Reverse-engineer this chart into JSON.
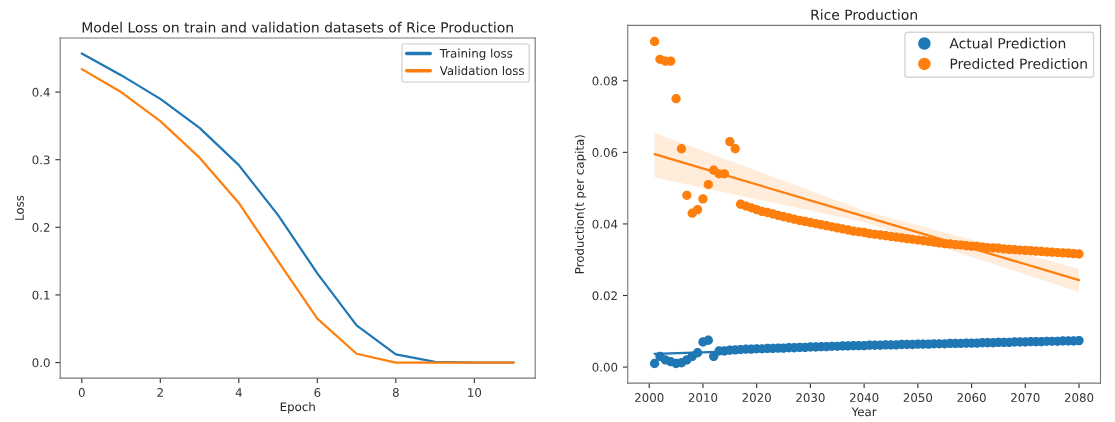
{
  "chart_data": [
    {
      "type": "line",
      "title": "Model Loss on train and validation datasets of Rice Production",
      "xlabel": "Epoch",
      "ylabel": "Loss",
      "x": [
        0,
        1,
        2,
        3,
        4,
        5,
        6,
        7,
        8,
        9,
        10,
        11
      ],
      "series": [
        {
          "name": "Training loss",
          "color": "#1f77b4",
          "values": [
            0.457,
            0.425,
            0.39,
            0.347,
            0.292,
            0.218,
            0.132,
            0.055,
            0.012,
            0.001,
            0.0,
            0.0
          ]
        },
        {
          "name": "Validation loss",
          "color": "#ff7f0e",
          "values": [
            0.434,
            0.4,
            0.357,
            0.303,
            0.236,
            0.15,
            0.065,
            0.013,
            0.0,
            0.0,
            0.0,
            0.0
          ]
        }
      ],
      "xlim": [
        -0.55,
        11.55
      ],
      "ylim": [
        -0.023,
        0.48
      ],
      "xticks": [
        0,
        2,
        4,
        6,
        8,
        10
      ],
      "yticks": [
        {
          "value": 0,
          "label": "0.0"
        },
        0.1,
        0.2,
        0.3,
        0.4
      ],
      "legend": "top right",
      "grid": false,
      "marker": "none",
      "line_style": "solid"
    },
    {
      "type": "scatter",
      "title": "Rice Production",
      "xlabel": "Year",
      "ylabel": "Production(t per capita)",
      "x": [
        2001,
        2002,
        2003,
        2004,
        2005,
        2006,
        2007,
        2008,
        2009,
        2010,
        2011,
        2012,
        2013,
        2014,
        2015,
        2016,
        2017,
        2018,
        2019,
        2020,
        2021,
        2022,
        2023,
        2024,
        2025,
        2026,
        2027,
        2028,
        2029,
        2030,
        2031,
        2032,
        2033,
        2034,
        2035,
        2036,
        2037,
        2038,
        2039,
        2040,
        2041,
        2042,
        2043,
        2044,
        2045,
        2046,
        2047,
        2048,
        2049,
        2050,
        2051,
        2052,
        2053,
        2054,
        2055,
        2056,
        2057,
        2058,
        2059,
        2060,
        2061,
        2062,
        2063,
        2064,
        2065,
        2066,
        2067,
        2068,
        2069,
        2070,
        2071,
        2072,
        2073,
        2074,
        2075,
        2076,
        2077,
        2078,
        2079,
        2080
      ],
      "series": [
        {
          "name": "Actual Prediction",
          "color": "#1f77b4",
          "values": [
            0.001,
            0.003,
            0.002,
            0.0015,
            0.001,
            0.0012,
            0.002,
            0.003,
            0.004,
            0.007,
            0.0075,
            0.003,
            0.0045,
            0.0045,
            0.0047,
            0.0048,
            0.0049,
            0.005,
            0.005,
            0.0051,
            0.0051,
            0.0052,
            0.0052,
            0.0053,
            0.0053,
            0.0054,
            0.0054,
            0.0055,
            0.0055,
            0.0056,
            0.0056,
            0.0057,
            0.0057,
            0.0058,
            0.0058,
            0.0059,
            0.0059,
            0.006,
            0.006,
            0.006,
            0.0061,
            0.0061,
            0.0061,
            0.0062,
            0.0062,
            0.0062,
            0.0063,
            0.0063,
            0.0063,
            0.0064,
            0.0064,
            0.0064,
            0.0065,
            0.0065,
            0.0065,
            0.0066,
            0.0066,
            0.0066,
            0.0067,
            0.0067,
            0.0067,
            0.0068,
            0.0068,
            0.0068,
            0.0069,
            0.0069,
            0.0069,
            0.007,
            0.007,
            0.007,
            0.0071,
            0.0071,
            0.0071,
            0.0072,
            0.0072,
            0.0072,
            0.0073,
            0.0073,
            0.0073,
            0.0074
          ]
        },
        {
          "name": "Predicted Prediction",
          "color": "#ff7f0e",
          "values": [
            0.091,
            0.086,
            0.0855,
            0.0855,
            0.075,
            0.061,
            0.048,
            0.043,
            0.044,
            0.047,
            0.051,
            0.055,
            0.054,
            0.054,
            0.063,
            0.061,
            0.0455,
            0.045,
            0.0445,
            0.044,
            0.0435,
            0.0432,
            0.0428,
            0.0424,
            0.042,
            0.0417,
            0.0413,
            0.041,
            0.0407,
            0.0404,
            0.0401,
            0.0398,
            0.0395,
            0.0392,
            0.0389,
            0.0386,
            0.0383,
            0.038,
            0.0378,
            0.0376,
            0.0373,
            0.0371,
            0.0369,
            0.0367,
            0.0365,
            0.0363,
            0.0361,
            0.0359,
            0.0357,
            0.0355,
            0.0353,
            0.0351,
            0.0349,
            0.0347,
            0.0345,
            0.0344,
            0.0342,
            0.0341,
            0.0339,
            0.0338,
            0.0337,
            0.0335,
            0.0334,
            0.0333,
            0.0332,
            0.033,
            0.0329,
            0.0328,
            0.0327,
            0.0326,
            0.0325,
            0.0324,
            0.0323,
            0.0322,
            0.0321,
            0.032,
            0.0319,
            0.0318,
            0.0317,
            0.0316
          ]
        },
        {
          "type": "line",
          "marker": "none",
          "color": "#1f77b4",
          "x": [
            2001,
            2080
          ],
          "values": [
            0.0037,
            0.0075
          ]
        },
        {
          "type": "line",
          "marker": "none",
          "color": "#ff7f0e",
          "x": [
            2001,
            2040,
            2080
          ],
          "values": [
            0.0595,
            0.0421,
            0.0243
          ],
          "lower": [
            0.053,
            0.0405,
            0.021
          ],
          "upper": [
            0.0655,
            0.0437,
            0.0275
          ]
        }
      ],
      "xlim": [
        1996,
        2084
      ],
      "ylim": [
        -0.0045,
        0.0955
      ],
      "xticks": [
        2000,
        2010,
        2020,
        2030,
        2040,
        2050,
        2060,
        2070,
        2080
      ],
      "yticks": [
        {
          "value": 0,
          "label": "0.00"
        },
        {
          "value": 0.02,
          "label": "0.02"
        },
        {
          "value": 0.04,
          "label": "0.04"
        },
        {
          "value": 0.06,
          "label": "0.06"
        },
        {
          "value": 0.08,
          "label": "0.08"
        }
      ],
      "legend": "top right",
      "grid": false,
      "marker": "circle"
    }
  ]
}
